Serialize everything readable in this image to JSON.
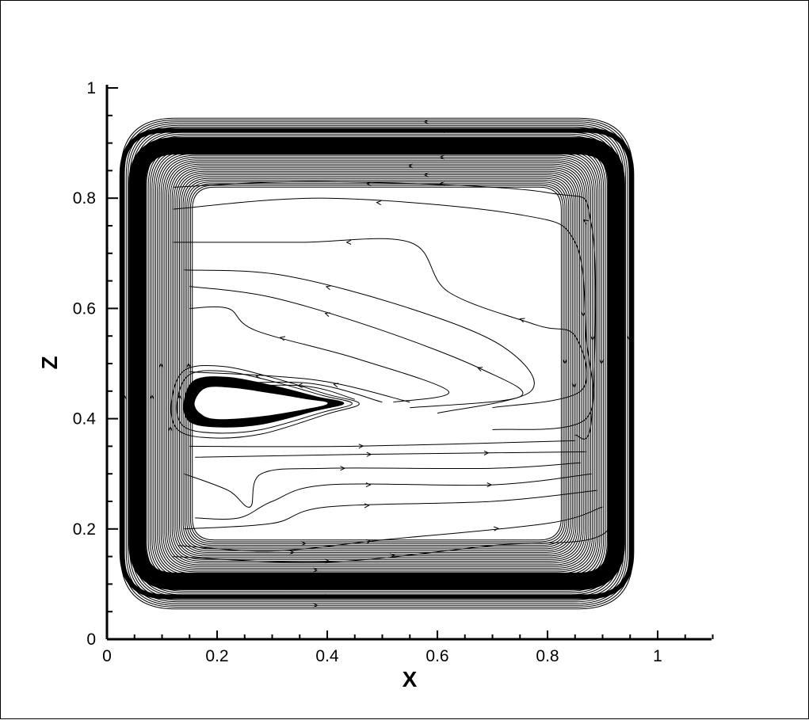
{
  "chart_data": {
    "type": "streamline",
    "xlabel": "X",
    "ylabel": "Z",
    "xlim": [
      0,
      1.1
    ],
    "ylim": [
      0,
      1
    ],
    "x_ticks": [
      "0",
      "0.2",
      "0.4",
      "0.6",
      "0.8",
      "1"
    ],
    "x_tick_values": [
      0,
      0.2,
      0.4,
      0.6,
      0.8,
      1
    ],
    "y_ticks": [
      "0",
      "0.2",
      "0.4",
      "0.6",
      "0.8",
      "1"
    ],
    "y_tick_values": [
      0,
      0.2,
      0.4,
      0.6,
      0.8,
      1
    ],
    "grid": false,
    "line_color": "#000000",
    "flow_direction": "clockwise",
    "outer_loops": {
      "count": 40,
      "center": [
        0.49,
        0.5
      ],
      "half_width": [
        0.335,
        0.465
      ],
      "half_height": [
        0.32,
        0.445
      ]
    },
    "outer_band": {
      "center": [
        0.49,
        0.5
      ],
      "half_width": 0.435,
      "half_height": 0.395
    },
    "inner_vortex": {
      "center": [
        0.27,
        0.43
      ],
      "core_outline": [
        [
          0.14,
          0.43
        ],
        [
          0.16,
          0.47
        ],
        [
          0.22,
          0.475
        ],
        [
          0.3,
          0.46
        ],
        [
          0.38,
          0.44
        ],
        [
          0.43,
          0.428
        ],
        [
          0.38,
          0.415
        ],
        [
          0.28,
          0.39
        ],
        [
          0.2,
          0.385
        ],
        [
          0.15,
          0.395
        ]
      ],
      "eye_outline": [
        [
          0.16,
          0.43
        ],
        [
          0.18,
          0.455
        ],
        [
          0.23,
          0.455
        ],
        [
          0.3,
          0.445
        ],
        [
          0.36,
          0.435
        ],
        [
          0.4,
          0.428
        ],
        [
          0.36,
          0.418
        ],
        [
          0.28,
          0.405
        ],
        [
          0.2,
          0.4
        ],
        [
          0.17,
          0.41
        ]
      ]
    },
    "upper_return_flow": [
      [
        [
          0.15,
          0.455
        ],
        [
          0.35,
          0.46
        ],
        [
          0.45,
          0.435
        ]
      ],
      [
        [
          0.15,
          0.46
        ],
        [
          0.36,
          0.465
        ],
        [
          0.5,
          0.43
        ]
      ],
      [
        [
          0.15,
          0.485
        ],
        [
          0.38,
          0.47
        ],
        [
          0.55,
          0.43
        ]
      ],
      [
        [
          0.15,
          0.6
        ],
        [
          0.22,
          0.6
        ],
        [
          0.27,
          0.56
        ],
        [
          0.45,
          0.51
        ],
        [
          0.62,
          0.45
        ],
        [
          0.52,
          0.43
        ]
      ],
      [
        [
          0.15,
          0.64
        ],
        [
          0.3,
          0.62
        ],
        [
          0.5,
          0.56
        ],
        [
          0.68,
          0.49
        ],
        [
          0.75,
          0.44
        ],
        [
          0.55,
          0.42
        ]
      ],
      [
        [
          0.14,
          0.67
        ],
        [
          0.32,
          0.66
        ],
        [
          0.55,
          0.6
        ],
        [
          0.72,
          0.53
        ],
        [
          0.77,
          0.45
        ],
        [
          0.6,
          0.41
        ]
      ],
      [
        [
          0.12,
          0.72
        ],
        [
          0.35,
          0.72
        ],
        [
          0.55,
          0.72
        ],
        [
          0.62,
          0.63
        ],
        [
          0.78,
          0.57
        ],
        [
          0.85,
          0.55
        ],
        [
          0.86,
          0.45
        ],
        [
          0.7,
          0.42
        ]
      ],
      [
        [
          0.12,
          0.78
        ],
        [
          0.4,
          0.8
        ],
        [
          0.75,
          0.77
        ],
        [
          0.85,
          0.72
        ],
        [
          0.87,
          0.55
        ],
        [
          0.87,
          0.4
        ],
        [
          0.7,
          0.38
        ]
      ],
      [
        [
          0.12,
          0.82
        ],
        [
          0.4,
          0.83
        ],
        [
          0.8,
          0.81
        ],
        [
          0.88,
          0.75
        ],
        [
          0.88,
          0.4
        ],
        [
          0.85,
          0.37
        ]
      ]
    ],
    "lower_flow": [
      [
        [
          0.15,
          0.35
        ],
        [
          0.45,
          0.35
        ],
        [
          0.85,
          0.36
        ]
      ],
      [
        [
          0.16,
          0.33
        ],
        [
          0.45,
          0.335
        ],
        [
          0.87,
          0.34
        ]
      ],
      [
        [
          0.14,
          0.3
        ],
        [
          0.22,
          0.27
        ],
        [
          0.26,
          0.24
        ],
        [
          0.28,
          0.3
        ],
        [
          0.4,
          0.31
        ],
        [
          0.7,
          0.31
        ],
        [
          0.86,
          0.32
        ]
      ],
      [
        [
          0.16,
          0.22
        ],
        [
          0.24,
          0.22
        ],
        [
          0.3,
          0.25
        ],
        [
          0.4,
          0.28
        ],
        [
          0.7,
          0.28
        ],
        [
          0.88,
          0.3
        ]
      ],
      [
        [
          0.14,
          0.2
        ],
        [
          0.3,
          0.21
        ],
        [
          0.4,
          0.24
        ],
        [
          0.7,
          0.25
        ],
        [
          0.89,
          0.27
        ]
      ],
      [
        [
          0.13,
          0.17
        ],
        [
          0.3,
          0.16
        ],
        [
          0.5,
          0.18
        ],
        [
          0.8,
          0.21
        ],
        [
          0.9,
          0.24
        ]
      ],
      [
        [
          0.12,
          0.15
        ],
        [
          0.4,
          0.14
        ],
        [
          0.7,
          0.17
        ],
        [
          0.9,
          0.19
        ],
        [
          0.92,
          0.3
        ]
      ]
    ]
  }
}
